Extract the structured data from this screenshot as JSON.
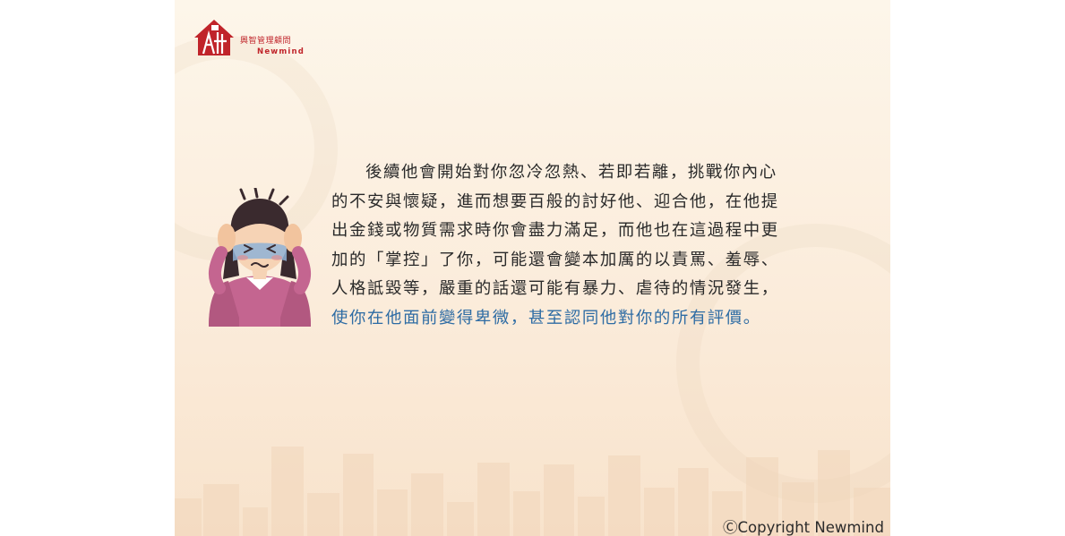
{
  "logo": {
    "chinese_name": "興智管理顧問",
    "english_name": "Newmind"
  },
  "body": {
    "lines": [
      "後續他會開始對你忽冷忽熱、若即若離，挑戰你內心",
      "的不安與懷疑，進而想要百般的討好他、迎合他，在他提",
      "出金錢或物質需求時你會盡力滿足，而他也在這過程中更",
      "加的「掌控」了你，可能還會變本加厲的以責罵、羞辱、",
      "人格詆毀等，嚴重的話還可能有暴力、虐待的情況發生，",
      "使你在他面前變得卑微，甚至認同他對你的所有評價。"
    ],
    "highlight_color": "#2e6ca4"
  },
  "footer": {
    "copyright": "ⒸCopyright Newmind"
  }
}
